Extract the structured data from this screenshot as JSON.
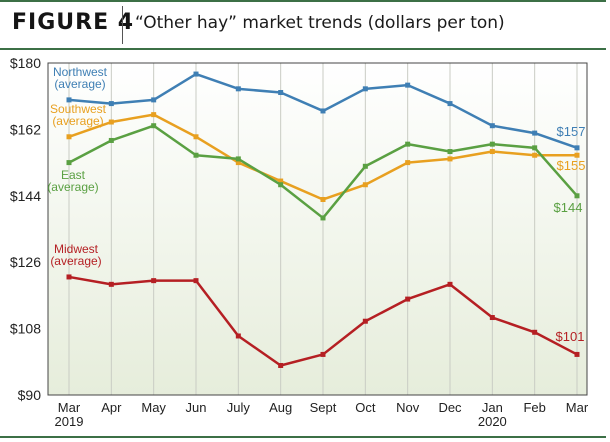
{
  "figure_label": "FIGURE 4",
  "chart_data": {
    "type": "line",
    "title": "“Other hay” market trends (dollars per ton)",
    "categories": [
      "Mar",
      "Apr",
      "May",
      "Jun",
      "July",
      "Aug",
      "Sept",
      "Oct",
      "Nov",
      "Dec",
      "Jan",
      "Feb",
      "Mar"
    ],
    "year_labels": [
      {
        "index": 0,
        "label": "2019"
      },
      {
        "index": 10,
        "label": "2020"
      }
    ],
    "yticks": [
      "$180",
      "$162",
      "$144",
      "$126",
      "$108",
      "$90"
    ],
    "ylim": [
      90,
      180
    ],
    "grid": "vertical",
    "series": [
      {
        "name": "Northwest",
        "sublabel": "(average)",
        "color": "#3f7fb4",
        "end_label": "$157",
        "values": [
          170,
          169,
          170,
          177,
          173,
          172,
          167,
          173,
          174,
          169,
          163,
          161,
          157
        ]
      },
      {
        "name": "Southwest",
        "sublabel": "(average)",
        "color": "#e8a020",
        "end_label": "$155",
        "values": [
          160,
          164,
          166,
          160,
          153,
          148,
          143,
          147,
          153,
          154,
          156,
          155,
          155
        ]
      },
      {
        "name": "East",
        "sublabel": "(average)",
        "color": "#5aa042",
        "end_label": "$144",
        "values": [
          153,
          159,
          163,
          155,
          154,
          147,
          138,
          152,
          158,
          156,
          158,
          157,
          144
        ]
      },
      {
        "name": "Midwest",
        "sublabel": "(average)",
        "color": "#b51f23",
        "end_label": "$101",
        "values": [
          122,
          120,
          121,
          121,
          106,
          98,
          101,
          110,
          116,
          120,
          111,
          107,
          101
        ]
      }
    ]
  }
}
